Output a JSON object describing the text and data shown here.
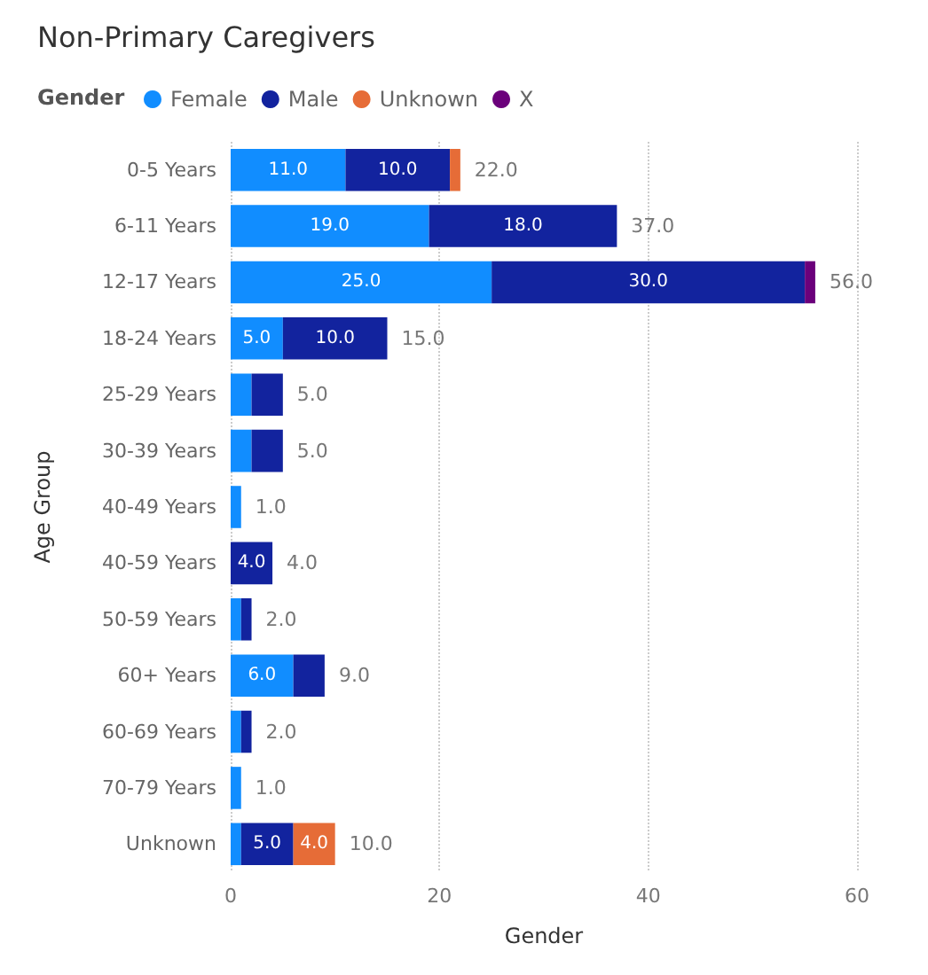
{
  "chart_data": {
    "type": "bar",
    "orientation": "horizontal",
    "stacked": true,
    "title": "Non-Primary Caregivers",
    "legend_title": "Gender",
    "xlabel": "Gender",
    "ylabel": "Age Group",
    "categories": [
      "0-5 Years",
      "6-11 Years",
      "12-17 Years",
      "18-24 Years",
      "25-29 Years",
      "30-39 Years",
      "40-49 Years",
      "40-59 Years",
      "50-59 Years",
      "60+ Years",
      "60-69 Years",
      "70-79 Years",
      "Unknown"
    ],
    "series": [
      {
        "name": "Female",
        "color": "#118dff",
        "values": [
          11,
          19,
          25,
          5,
          2,
          2,
          1,
          null,
          1,
          6,
          1,
          1,
          1
        ],
        "value_labels": [
          "11.0",
          "19.0",
          "25.0",
          "5.0",
          null,
          null,
          null,
          null,
          null,
          "6.0",
          null,
          null,
          null
        ]
      },
      {
        "name": "Male",
        "color": "#12239e",
        "values": [
          10,
          18,
          30,
          10,
          3,
          3,
          null,
          4,
          1,
          3,
          1,
          null,
          5
        ],
        "value_labels": [
          "10.0",
          "18.0",
          "30.0",
          "10.0",
          null,
          null,
          null,
          "4.0",
          null,
          null,
          null,
          null,
          "5.0"
        ]
      },
      {
        "name": "Unknown",
        "color": "#e66c37",
        "values": [
          1,
          null,
          null,
          null,
          null,
          null,
          null,
          null,
          null,
          null,
          null,
          null,
          4
        ],
        "value_labels": [
          null,
          null,
          null,
          null,
          null,
          null,
          null,
          null,
          null,
          null,
          null,
          null,
          "4.0"
        ]
      },
      {
        "name": "X",
        "color": "#6b007b",
        "values": [
          null,
          null,
          1,
          null,
          null,
          null,
          null,
          null,
          null,
          null,
          null,
          null,
          null
        ]
      }
    ],
    "totals": [
      "22.0",
      "37.0",
      "56.0",
      "15.0",
      "5.0",
      "5.0",
      "1.0",
      "4.0",
      "2.0",
      "9.0",
      "2.0",
      "1.0",
      "10.0"
    ],
    "xlim": [
      0,
      60
    ],
    "xticks": [
      0,
      20,
      40,
      60
    ],
    "grid": "x",
    "legend": "top left"
  }
}
